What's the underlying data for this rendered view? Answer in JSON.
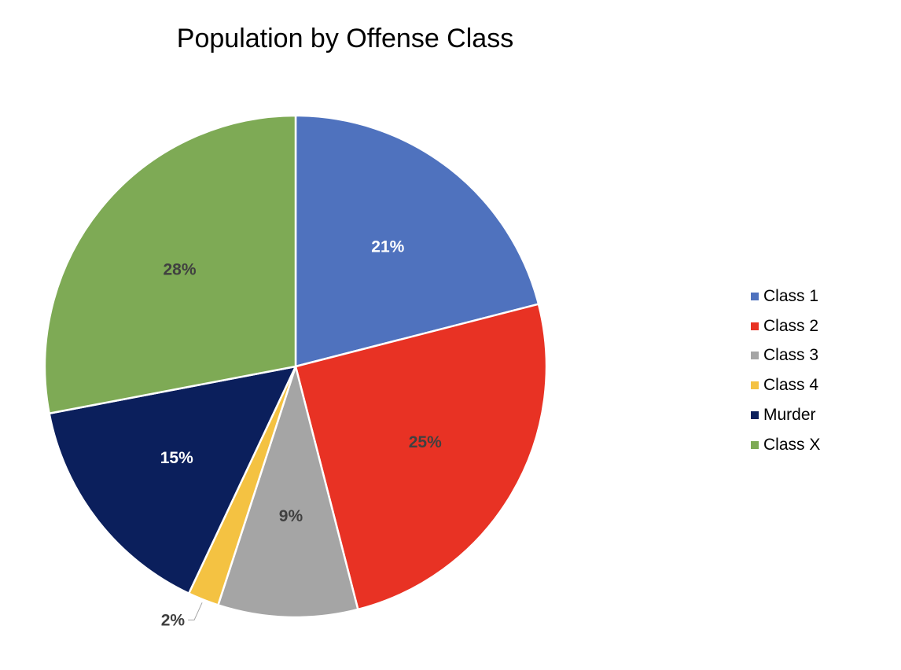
{
  "chart_data": {
    "type": "pie",
    "title": "Population by Offense Class",
    "categories": [
      "Class 1",
      "Class 2",
      "Class 3",
      "Class 4",
      "Murder",
      "Class X"
    ],
    "values": [
      21,
      25,
      9,
      2,
      15,
      28
    ],
    "labels": [
      "21%",
      "25%",
      "9%",
      "2%",
      "15%",
      "28%"
    ],
    "colors": [
      "#4F72BE",
      "#E83224",
      "#A5A5A5",
      "#F4C242",
      "#0B1F5C",
      "#7EAA55"
    ],
    "label_colors": [
      "#FFFFFF",
      "#404040",
      "#404040",
      "#404040",
      "#FFFFFF",
      "#404040"
    ],
    "legend_position": "right",
    "start_angle_deg": 0,
    "direction": "clockwise"
  }
}
